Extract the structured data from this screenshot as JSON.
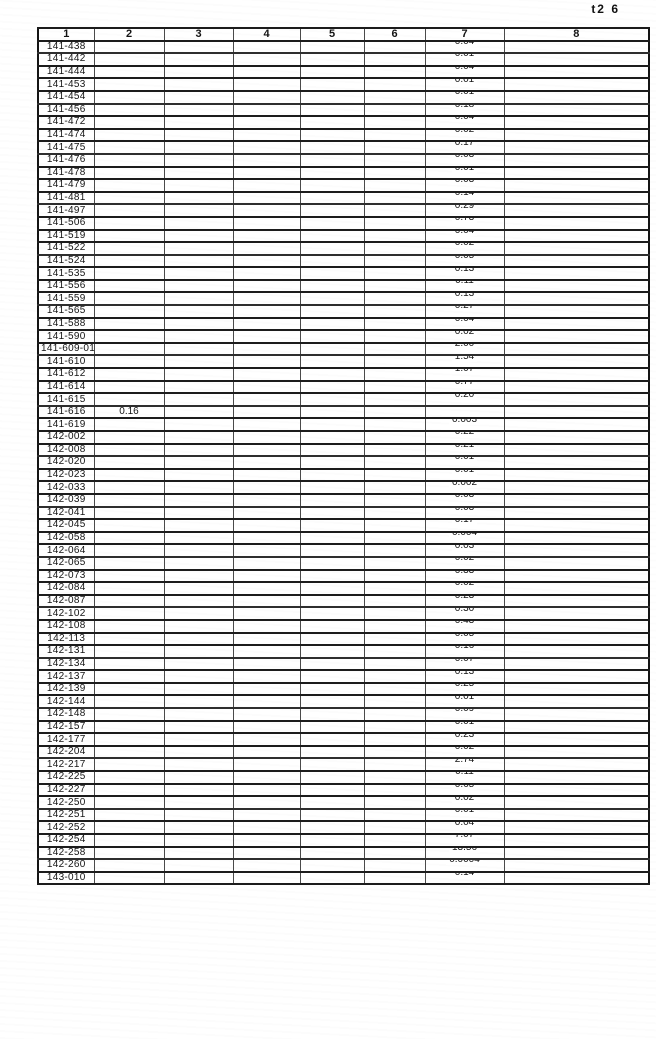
{
  "page": {
    "corner_label": "t2 6"
  },
  "table": {
    "column_headers": [
      "1",
      "2",
      "3",
      "4",
      "5",
      "6",
      "7",
      "8"
    ],
    "row_fields": [
      "id",
      "col2_value",
      "col7_value"
    ],
    "rows": [
      [
        "141-438",
        "",
        "0.04"
      ],
      [
        "141-442",
        "",
        "0.01"
      ],
      [
        "141-444",
        "",
        "0.04"
      ],
      [
        "141-453",
        "",
        "0.01"
      ],
      [
        "141-454",
        "",
        "0.01"
      ],
      [
        "141-456",
        "",
        "0.18"
      ],
      [
        "141-472",
        "",
        "0.04"
      ],
      [
        "141-474",
        "",
        "0.02"
      ],
      [
        "141-475",
        "",
        "0.17"
      ],
      [
        "141-476",
        "",
        "0.03"
      ],
      [
        "141-478",
        "",
        "0.01"
      ],
      [
        "141-479",
        "",
        "0.03"
      ],
      [
        "141-481",
        "",
        "0.14"
      ],
      [
        "141-497",
        "",
        "0.29"
      ],
      [
        "141-506",
        "",
        "0.73"
      ],
      [
        "141-519",
        "",
        "0.04"
      ],
      [
        "141-522",
        "",
        "0.02"
      ],
      [
        "141-524",
        "",
        "0.05"
      ],
      [
        "141-535",
        "",
        "0.13"
      ],
      [
        "141-556",
        "",
        "0.11"
      ],
      [
        "141-559",
        "",
        "0.13"
      ],
      [
        "141-565",
        "",
        "0.27"
      ],
      [
        "141-588",
        "",
        "0.04"
      ],
      [
        "141-590",
        "",
        "0.02"
      ],
      [
        "141-609-01",
        "",
        "2.00"
      ],
      [
        "141-610",
        "",
        "1.54"
      ],
      [
        "141-612",
        "",
        "1.07"
      ],
      [
        "141-614",
        "",
        "0.77"
      ],
      [
        "141-615",
        "",
        "0.20"
      ],
      [
        "141-616",
        "0.16",
        ""
      ],
      [
        "141-619",
        "",
        "0.003"
      ],
      [
        "142-002",
        "",
        "0.22"
      ],
      [
        "142-008",
        "",
        "0.21"
      ],
      [
        "142-020",
        "",
        "0.01"
      ],
      [
        "142-023",
        "",
        "0.01"
      ],
      [
        "142-033",
        "",
        "0.002"
      ],
      [
        "142-039",
        "",
        "0.03"
      ],
      [
        "142-041",
        "",
        "0.03"
      ],
      [
        "142-045",
        "",
        "0.17"
      ],
      [
        "142-058",
        "",
        "0.004"
      ],
      [
        "142-064",
        "",
        "0.03"
      ],
      [
        "142-065",
        "",
        "0.02"
      ],
      [
        "142-073",
        "",
        "0.33"
      ],
      [
        "142-084",
        "",
        "0.02"
      ],
      [
        "142-087",
        "",
        "0.23"
      ],
      [
        "142-102",
        "",
        "0.30"
      ],
      [
        "142-108",
        "",
        "0.43"
      ],
      [
        "142-113",
        "",
        "0.05"
      ],
      [
        "142-131",
        "",
        "0.16"
      ],
      [
        "142-134",
        "",
        "0.07"
      ],
      [
        "142-137",
        "",
        "0.13"
      ],
      [
        "142-139",
        "",
        "0.25"
      ],
      [
        "142-144",
        "",
        "0.01"
      ],
      [
        "142-148",
        "",
        "0.09"
      ],
      [
        "142-157",
        "",
        "0.01"
      ],
      [
        "142-177",
        "",
        "0.23"
      ],
      [
        "142-204",
        "",
        "0.02"
      ],
      [
        "142-217",
        "",
        "2.74"
      ],
      [
        "142-225",
        "",
        "0.11"
      ],
      [
        "142-227",
        "",
        "0.65"
      ],
      [
        "142-250",
        "",
        "0.02"
      ],
      [
        "142-251",
        "",
        "0.01"
      ],
      [
        "142-252",
        "",
        "0.04"
      ],
      [
        "142-254",
        "",
        "7.07"
      ],
      [
        "142-258",
        "",
        "13.56"
      ],
      [
        "142-260",
        "",
        "0.0004"
      ],
      [
        "143-010",
        "",
        "0.14"
      ]
    ]
  }
}
